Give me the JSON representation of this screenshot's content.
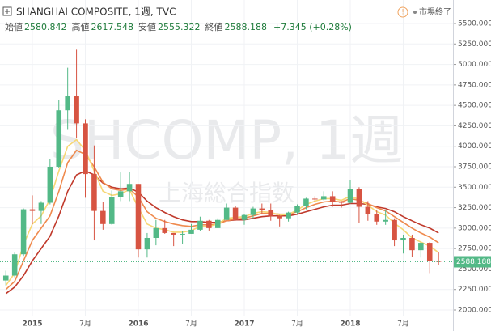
{
  "header": {
    "title": "SHANGHAI COMPOSITE, 1週, TVC",
    "status": "市場終了",
    "ohlc": [
      {
        "label": "始値",
        "value": 2580.842
      },
      {
        "label": "高値",
        "value": 2617.548
      },
      {
        "label": "安値",
        "value": 2555.322
      },
      {
        "label": "終値",
        "value": 2588.188
      }
    ],
    "change": "+7.345 (+0.28%)"
  },
  "chart_data": {
    "type": "candlestick",
    "watermark": "SHCOMP, 1週",
    "watermark_sub": "上海総合指数",
    "x": [
      "2014-10",
      "2014-11",
      "2014-12",
      "2015-01",
      "2015-02",
      "2015-03",
      "2015-04",
      "2015-05",
      "2015-06",
      "2015-07",
      "2015-08",
      "2015-09",
      "2015-10",
      "2015-11",
      "2015-12",
      "2016-01",
      "2016-02",
      "2016-03",
      "2016-04",
      "2016-05",
      "2016-06",
      "2016-07",
      "2016-08",
      "2016-09",
      "2016-10",
      "2016-11",
      "2016-12",
      "2017-01",
      "2017-02",
      "2017-03",
      "2017-04",
      "2017-05",
      "2017-06",
      "2017-07",
      "2017-08",
      "2017-09",
      "2017-10",
      "2017-11",
      "2017-12",
      "2018-01",
      "2018-02",
      "2018-03",
      "2018-04",
      "2018-05",
      "2018-06",
      "2018-07",
      "2018-08",
      "2018-09",
      "2018-10",
      "2018-11"
    ],
    "open": [
      2360,
      2420,
      2680,
      3230,
      3210,
      3310,
      3750,
      4440,
      4610,
      4280,
      3660,
      3210,
      3050,
      3380,
      3450,
      3540,
      2740,
      2880,
      3000,
      2940,
      2920,
      2930,
      2980,
      3090,
      3000,
      3100,
      3250,
      3100,
      3160,
      3240,
      3220,
      3150,
      3120,
      3190,
      3270,
      3360,
      3350,
      3390,
      3320,
      3310,
      3480,
      3260,
      3170,
      3080,
      3100,
      2850,
      2880,
      2730,
      2820,
      2600
    ],
    "high": [
      2480,
      2700,
      3240,
      3400,
      3330,
      3840,
      4570,
      4960,
      5180,
      4330,
      4010,
      3320,
      3460,
      3680,
      3690,
      3540,
      2940,
      3100,
      3100,
      2930,
      2960,
      3050,
      3140,
      3100,
      3120,
      3300,
      3270,
      3170,
      3260,
      3300,
      3300,
      3160,
      3200,
      3290,
      3370,
      3390,
      3450,
      3450,
      3330,
      3590,
      3500,
      3330,
      3220,
      3220,
      3120,
      2920,
      2920,
      2830,
      2830,
      2710
    ],
    "low": [
      2300,
      2400,
      2660,
      3050,
      3050,
      3290,
      3740,
      4200,
      4100,
      3370,
      2850,
      2980,
      3040,
      3330,
      3330,
      2640,
      2640,
      2790,
      2930,
      2780,
      2810,
      2930,
      2960,
      2970,
      3000,
      3100,
      3090,
      3040,
      3120,
      3180,
      3090,
      3020,
      3080,
      3170,
      3230,
      3320,
      3340,
      3260,
      3250,
      3300,
      3060,
      3090,
      3040,
      3040,
      2780,
      2690,
      2650,
      2640,
      2450,
      2550
    ],
    "close": [
      2420,
      2680,
      3230,
      3210,
      3310,
      3750,
      4440,
      4610,
      4280,
      3660,
      3210,
      3050,
      3380,
      3450,
      3540,
      2740,
      2880,
      3000,
      2940,
      2920,
      2930,
      2980,
      3090,
      3000,
      3100,
      3250,
      3100,
      3160,
      3240,
      3220,
      3150,
      3120,
      3190,
      3270,
      3360,
      3350,
      3390,
      3320,
      3310,
      3480,
      3260,
      3170,
      3080,
      3100,
      2850,
      2880,
      2730,
      2820,
      2600,
      2588
    ],
    "up_color": "#53b987",
    "down_color": "#d75442",
    "series": [
      {
        "color": "#c0392b",
        "values": [
          2200,
          2280,
          2420,
          2600,
          2750,
          2900,
          3150,
          3450,
          3650,
          3700,
          3650,
          3550,
          3500,
          3480,
          3490,
          3440,
          3330,
          3250,
          3190,
          3140,
          3100,
          3080,
          3080,
          3070,
          3070,
          3090,
          3100,
          3100,
          3120,
          3140,
          3150,
          3150,
          3150,
          3170,
          3200,
          3230,
          3260,
          3280,
          3280,
          3300,
          3300,
          3290,
          3260,
          3240,
          3200,
          3140,
          3090,
          3040,
          3000,
          2940
        ]
      },
      {
        "color": "#ef8a4e",
        "values": [
          2250,
          2350,
          2600,
          2850,
          3000,
          3150,
          3450,
          3800,
          3950,
          3900,
          3750,
          3560,
          3480,
          3460,
          3480,
          3380,
          3200,
          3120,
          3080,
          3050,
          3030,
          3020,
          3040,
          3040,
          3050,
          3090,
          3110,
          3120,
          3150,
          3180,
          3180,
          3170,
          3170,
          3200,
          3250,
          3290,
          3320,
          3330,
          3320,
          3360,
          3340,
          3300,
          3250,
          3210,
          3140,
          3070,
          3000,
          2940,
          2890,
          2820
        ]
      },
      {
        "color": "#f7d774",
        "values": [
          2300,
          2450,
          2800,
          3050,
          3150,
          3350,
          3700,
          4000,
          4080,
          3950,
          3700,
          3450,
          3400,
          3420,
          3470,
          3250,
          3050,
          3000,
          2980,
          2950,
          2950,
          2970,
          3020,
          3020,
          3050,
          3120,
          3130,
          3140,
          3180,
          3200,
          3190,
          3160,
          3170,
          3220,
          3290,
          3330,
          3360,
          3360,
          3340,
          3390,
          3350,
          3280,
          3200,
          3160,
          3060,
          2980,
          2880,
          2830,
          2780,
          2700
        ]
      }
    ],
    "last_price": {
      "value": 2588.188,
      "label": "2588.188"
    },
    "ylim": [
      2000,
      5500
    ],
    "yticks": [
      {
        "value": 2000,
        "label": "2000.000"
      },
      {
        "value": 2250,
        "label": "2250.000"
      },
      {
        "value": 2500,
        "label": "2500.000"
      },
      {
        "value": 2750,
        "label": "2750.000"
      },
      {
        "value": 3000,
        "label": "3000.000"
      },
      {
        "value": 3250,
        "label": "3250.000"
      },
      {
        "value": 3500,
        "label": "3500.000"
      },
      {
        "value": 3750,
        "label": "3750.000"
      },
      {
        "value": 4000,
        "label": "4000.000"
      },
      {
        "value": 4250,
        "label": "4250.000"
      },
      {
        "value": 4500,
        "label": "4500.000"
      },
      {
        "value": 4750,
        "label": "4750.000"
      },
      {
        "value": 5000,
        "label": "5000.000"
      },
      {
        "value": 5250,
        "label": "5250.000"
      },
      {
        "value": 5500,
        "label": "5500.000"
      }
    ],
    "xticks": [
      {
        "value": "2015-01",
        "label": "2015"
      },
      {
        "value": "2015-07",
        "label": "7月"
      },
      {
        "value": "2016-01",
        "label": "2016"
      },
      {
        "value": "2016-07",
        "label": "7月"
      },
      {
        "value": "2017-01",
        "label": "2017"
      },
      {
        "value": "2017-07",
        "label": "7月"
      },
      {
        "value": "2018-01",
        "label": "2018"
      },
      {
        "value": "2018-07",
        "label": "7月"
      }
    ],
    "grid": true
  }
}
